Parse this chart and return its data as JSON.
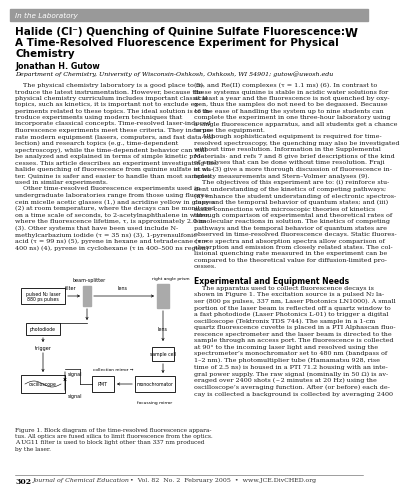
{
  "header_text": "In the Laboratory",
  "header_bg": "#999999",
  "title_line1": "Halide (Cl⁻) Quenching of Quinine Sulfate Fluorescence:",
  "title_line2": "A Time-Resolved Fluorescence Experiment for Physical",
  "title_line3": "Chemistry",
  "title_symbol": "W",
  "author": "Jonathan H. Gutow",
  "affiliation": "Department of Chemistry, University of Wisconsin-Oshkosh, Oshkosh, WI 54901; gutow@uwosh.edu",
  "left_col_body": "    The physical chemistry laboratory is a good place to in-\ntroduce the latest instrumentation. However, because the\nphysical chemistry curriculum includes important classical\ntopics, such as kinetics, it is important not to exclude ex-\nperiments related to these topics. The ideal solution is to in-\ntroduce experiments using modern techniques that\nincorporate classical concepts. Time-resolved laser-induced\nfluorescence experiments meet these criteria. They incorpo-\nrate modern equipment (lasers, computers, and fast data col-\nlection) and research topics (e.g., time-dependent\nspectroscopy), while the time-dependent behavior can still\nbe analyzed and explained in terms of simple kinetic pro-\ncesses. This article describes an experiment investigating the\nhalide quenching of fluorescence from quinine sulfate in wa-\nter. Quinine is safer and easier to handle than most samples\nused in similar experiments.\n    Other time-resolved fluorescence experiments used in\nundergraduate laboratories range from those using fluores-\ncein micelle acetic glasses (1,) and acridine yellow in glasses\n(2) at room temperature, where the decays can be monitored\non a time scale of seconds, to 2-acetylnaphthalene in water,\nwhere the fluorescence lifetime, τ, is approximately 2.0 ns\n(3). Other systems that have been used include N-\nmethylcarbazium iodide (τ = 35 ns) (3), 1-pyrensulfonic\nacid (τ = 99 ns) (5), pyrene in hexane and tetradecane (τ =\n400 ns) (4), pyrene in cyclohexane (τ in 400–500 ns region)",
  "right_col_body": "(5), and Re(II) complexes (τ = 1.1 ms) (6). In contrast to\nthese systems quinine is stable in acidic water solutions for\nat least a year and the fluorescence is not quenched by oxy-\ngen, thus the samples do not need to be degassed. Because\nof the ease of handling the system up to nine students can\ncomplete the experiment in one three-hour laboratory using\na single fluorescence apparatus, and all students get a chance\nto use the equipment.\n    Although sophisticated equipment is required for time-\nresolved spectroscopy, the quenching may also be investigated\nwithout time resolution. Information in the Supplemental\nMaterials· and refs 7 and 8 give brief descriptions of the kind\nof analyses that can be done without time resolution. Fraji\net al. (3) give a more thorough discussion of fluorescence in-\ntensity measurements and Stern–Volmer analyses (9).\n    The objectives of this experiment are to: (i) reinforce stu-\ndent understanding of the kinetics of competing pathways;\n(ii) enhance the student understanding of electronic spectros-\ncopy and the temporal behavior of quantum states; and (iii)\nmake connections with microscopic theories of kinetics\nthrough comparison of experimental and theoretical rates of\nbimolecular reactions in solution. The kinetics of competing\npathways and the temporal behavior of quantum states are\nobserved in time-resolved fluorescence decays. Static fluores-\ncence spectra and absorption spectra allow comparison of\nabsorption and emission from closely related states. The col-\nlisional quenching rate measured in the experiment can be\ncompared to the theoretical value for diffusion-limited pro-\ncesses.",
  "section_header": "Experimental and Equipment Needs",
  "section_body": "    The apparatus used to collect fluorescence decays is\nshown in Figure 1. The excitation source is a pulsed N₂ la-\nser (800 ps pulses, 337 nm, Laser Photonics LN1000). A small\nportion of the laser beam is reflected off a quartz window to\na fast photodiode (Laser Photonics L-01) to trigger a digital\noscilloscope (Tektronix TDS 744). The sample in a 1-cm\nquartz fluorescence cuvette is placed in a PTI Alphascan fluo-\nrescence spectrometer and the laser beam is directed to the\nsample through an access port. The fluorescence is collected\nat 90° to the incoming laser light and resolved using the\nspectrometer’s monochromator set to 480 nm (bandpass of\n1–2 nm). The photomultiplier tube (Hamamatsu 928, rise\ntime of 2.5 ns) is housed in a PTI 71.2 housing with an inte-\ngral power supply. The raw signal (nominally in 50 Ω) is av-\neraged over 2400 shots (~2 minutes at 20 Hz) using the\noscilloscope’s averaging function. After (or before) each de-\ncay is collected a background is collected by averaging 2400",
  "fig_caption": "Figure 1. Block diagram of the time-resolved fluorescence appara-\ntus. All optics are fused silica to limit fluorescence from the optics.\nA UG11 filter is used to block light other than 337 nm produced\nby the laser.",
  "footer_page": "302",
  "footer_text": "Journal of Chemical Education  •  Vol. 82  No. 2  February 2005  •  www.JCE.DivCHED.org",
  "bg_color": "#ffffff",
  "text_color": "#1a1a1a",
  "gray_color": "#666666"
}
